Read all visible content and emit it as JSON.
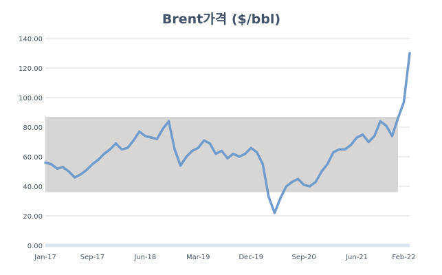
{
  "chart_data": {
    "type": "line",
    "title": "Brent가격 ($/bbl)",
    "xlabel": "",
    "ylabel": "",
    "ylim": [
      0,
      140
    ],
    "xlim": [
      "2017-01",
      "2022-03"
    ],
    "grid": true,
    "legend": "none",
    "y_ticks": [
      "0.00",
      "20.00",
      "40.00",
      "60.00",
      "80.00",
      "100.00",
      "120.00",
      "140.00"
    ],
    "x_ticks": [
      {
        "label": "Jan-17",
        "date": "2017-01"
      },
      {
        "label": "Sep-17",
        "date": "2017-09"
      },
      {
        "label": "Jun-18",
        "date": "2018-06"
      },
      {
        "label": "Mar-19",
        "date": "2019-03"
      },
      {
        "label": "Dec-19",
        "date": "2019-12"
      },
      {
        "label": "Sep-20",
        "date": "2020-09"
      },
      {
        "label": "Jun-21",
        "date": "2021-06"
      },
      {
        "label": "Feb-22",
        "date": "2022-02"
      }
    ],
    "shaded_band": {
      "y_min": 36,
      "y_max": 87,
      "x_from": "2017-01",
      "x_to": "2022-01"
    },
    "series": [
      {
        "x": [
          "2017-01",
          "2017-02",
          "2017-03",
          "2017-04",
          "2017-05",
          "2017-06",
          "2017-07",
          "2017-08",
          "2017-09",
          "2017-10",
          "2017-11",
          "2017-12",
          "2018-01",
          "2018-02",
          "2018-03",
          "2018-04",
          "2018-05",
          "2018-06",
          "2018-07",
          "2018-08",
          "2018-09",
          "2018-10",
          "2018-11",
          "2018-12",
          "2019-01",
          "2019-02",
          "2019-03",
          "2019-04",
          "2019-05",
          "2019-06",
          "2019-07",
          "2019-08",
          "2019-09",
          "2019-10",
          "2019-11",
          "2019-12",
          "2020-01",
          "2020-02",
          "2020-03",
          "2020-04",
          "2020-05",
          "2020-06",
          "2020-07",
          "2020-08",
          "2020-09",
          "2020-10",
          "2020-11",
          "2020-12",
          "2021-01",
          "2021-02",
          "2021-03",
          "2021-04",
          "2021-05",
          "2021-06",
          "2021-07",
          "2021-08",
          "2021-09",
          "2021-10",
          "2021-11",
          "2021-12",
          "2022-01",
          "2022-02",
          "2022-03"
        ],
        "y": [
          56,
          55,
          52,
          53,
          50,
          46,
          48,
          51,
          55,
          58,
          62,
          65,
          69,
          65,
          66,
          71,
          77,
          74,
          73,
          72,
          79,
          84,
          65,
          54,
          60,
          64,
          66,
          71,
          69,
          62,
          64,
          59,
          62,
          60,
          62,
          66,
          63,
          55,
          33,
          22,
          32,
          40,
          43,
          45,
          41,
          40,
          43,
          50,
          55,
          63,
          65,
          65,
          68,
          73,
          75,
          70,
          74,
          84,
          81,
          74,
          86,
          97,
          130
        ],
        "color": "#6f9ccd"
      }
    ],
    "colors": {
      "line": "#6f9ccd",
      "band": "#d8d5d5",
      "grid": "#d9d9d9",
      "axis": "#dae3ee",
      "text": "#44546a"
    }
  }
}
